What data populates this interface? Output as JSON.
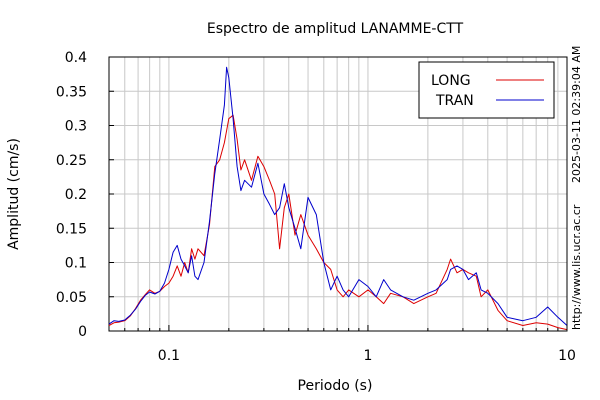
{
  "chart_data": {
    "type": "line",
    "title": "Espectro de amplitud LANAMME-CTT",
    "xlabel": "Periodo (s)",
    "ylabel": "Amplitud (cm/s)",
    "x_scale": "log",
    "xlim": [
      0.05,
      10
    ],
    "ylim": [
      0,
      0.4
    ],
    "grid": true,
    "legend_position": "top-right",
    "x_ticks": [
      {
        "value": 0.1,
        "label": "0.1"
      },
      {
        "value": 1,
        "label": "1"
      },
      {
        "value": 10,
        "label": "10"
      }
    ],
    "y_ticks": [
      {
        "value": 0,
        "label": "0"
      },
      {
        "value": 0.05,
        "label": "0.05"
      },
      {
        "value": 0.1,
        "label": "0.1"
      },
      {
        "value": 0.15,
        "label": "0.15"
      },
      {
        "value": 0.2,
        "label": "0.2"
      },
      {
        "value": 0.25,
        "label": "0.25"
      },
      {
        "value": 0.3,
        "label": "0.3"
      },
      {
        "value": 0.35,
        "label": "0.35"
      },
      {
        "value": 0.4,
        "label": "0.4"
      }
    ],
    "side_text_top": "2025-03-11 02:39:04 AM",
    "side_text_bottom": "http://www.lis.ucr.ac.cr",
    "series": [
      {
        "name": "LONG",
        "color": "#dd0000",
        "points": [
          [
            0.05,
            0.008
          ],
          [
            0.053,
            0.012
          ],
          [
            0.056,
            0.013
          ],
          [
            0.06,
            0.015
          ],
          [
            0.064,
            0.022
          ],
          [
            0.068,
            0.033
          ],
          [
            0.072,
            0.045
          ],
          [
            0.076,
            0.053
          ],
          [
            0.08,
            0.06
          ],
          [
            0.085,
            0.055
          ],
          [
            0.09,
            0.058
          ],
          [
            0.095,
            0.065
          ],
          [
            0.1,
            0.07
          ],
          [
            0.105,
            0.08
          ],
          [
            0.11,
            0.095
          ],
          [
            0.115,
            0.08
          ],
          [
            0.12,
            0.1
          ],
          [
            0.125,
            0.085
          ],
          [
            0.13,
            0.12
          ],
          [
            0.135,
            0.105
          ],
          [
            0.14,
            0.12
          ],
          [
            0.15,
            0.11
          ],
          [
            0.16,
            0.155
          ],
          [
            0.17,
            0.24
          ],
          [
            0.18,
            0.25
          ],
          [
            0.19,
            0.275
          ],
          [
            0.2,
            0.31
          ],
          [
            0.21,
            0.315
          ],
          [
            0.22,
            0.28
          ],
          [
            0.23,
            0.235
          ],
          [
            0.24,
            0.25
          ],
          [
            0.26,
            0.22
          ],
          [
            0.28,
            0.255
          ],
          [
            0.3,
            0.24
          ],
          [
            0.32,
            0.22
          ],
          [
            0.34,
            0.2
          ],
          [
            0.36,
            0.12
          ],
          [
            0.38,
            0.18
          ],
          [
            0.4,
            0.2
          ],
          [
            0.43,
            0.14
          ],
          [
            0.46,
            0.17
          ],
          [
            0.5,
            0.14
          ],
          [
            0.55,
            0.12
          ],
          [
            0.6,
            0.1
          ],
          [
            0.65,
            0.09
          ],
          [
            0.7,
            0.06
          ],
          [
            0.75,
            0.05
          ],
          [
            0.8,
            0.06
          ],
          [
            0.9,
            0.05
          ],
          [
            1.0,
            0.06
          ],
          [
            1.1,
            0.05
          ],
          [
            1.2,
            0.04
          ],
          [
            1.3,
            0.055
          ],
          [
            1.5,
            0.05
          ],
          [
            1.7,
            0.04
          ],
          [
            2.0,
            0.05
          ],
          [
            2.2,
            0.055
          ],
          [
            2.5,
            0.09
          ],
          [
            2.6,
            0.105
          ],
          [
            2.8,
            0.085
          ],
          [
            3.0,
            0.09
          ],
          [
            3.2,
            0.085
          ],
          [
            3.5,
            0.08
          ],
          [
            3.7,
            0.05
          ],
          [
            4.0,
            0.06
          ],
          [
            4.5,
            0.03
          ],
          [
            5.0,
            0.015
          ],
          [
            6.0,
            0.008
          ],
          [
            7.0,
            0.012
          ],
          [
            8.0,
            0.01
          ],
          [
            9.0,
            0.005
          ],
          [
            10.0,
            0.002
          ]
        ]
      },
      {
        "name": "TRAN",
        "color": "#0000cc",
        "points": [
          [
            0.05,
            0.01
          ],
          [
            0.053,
            0.015
          ],
          [
            0.056,
            0.014
          ],
          [
            0.06,
            0.016
          ],
          [
            0.064,
            0.023
          ],
          [
            0.068,
            0.032
          ],
          [
            0.072,
            0.043
          ],
          [
            0.076,
            0.052
          ],
          [
            0.08,
            0.057
          ],
          [
            0.085,
            0.054
          ],
          [
            0.09,
            0.058
          ],
          [
            0.095,
            0.07
          ],
          [
            0.1,
            0.09
          ],
          [
            0.105,
            0.115
          ],
          [
            0.11,
            0.125
          ],
          [
            0.115,
            0.105
          ],
          [
            0.12,
            0.095
          ],
          [
            0.125,
            0.085
          ],
          [
            0.13,
            0.11
          ],
          [
            0.135,
            0.08
          ],
          [
            0.14,
            0.075
          ],
          [
            0.15,
            0.1
          ],
          [
            0.16,
            0.16
          ],
          [
            0.17,
            0.23
          ],
          [
            0.18,
            0.28
          ],
          [
            0.19,
            0.33
          ],
          [
            0.195,
            0.385
          ],
          [
            0.2,
            0.37
          ],
          [
            0.21,
            0.31
          ],
          [
            0.22,
            0.24
          ],
          [
            0.23,
            0.205
          ],
          [
            0.24,
            0.22
          ],
          [
            0.26,
            0.21
          ],
          [
            0.28,
            0.245
          ],
          [
            0.3,
            0.2
          ],
          [
            0.32,
            0.185
          ],
          [
            0.34,
            0.17
          ],
          [
            0.36,
            0.18
          ],
          [
            0.38,
            0.215
          ],
          [
            0.4,
            0.18
          ],
          [
            0.43,
            0.15
          ],
          [
            0.46,
            0.12
          ],
          [
            0.5,
            0.195
          ],
          [
            0.55,
            0.17
          ],
          [
            0.6,
            0.1
          ],
          [
            0.65,
            0.06
          ],
          [
            0.7,
            0.08
          ],
          [
            0.75,
            0.06
          ],
          [
            0.8,
            0.05
          ],
          [
            0.9,
            0.075
          ],
          [
            1.0,
            0.065
          ],
          [
            1.1,
            0.05
          ],
          [
            1.2,
            0.075
          ],
          [
            1.3,
            0.06
          ],
          [
            1.5,
            0.05
          ],
          [
            1.7,
            0.045
          ],
          [
            2.0,
            0.055
          ],
          [
            2.2,
            0.06
          ],
          [
            2.5,
            0.075
          ],
          [
            2.6,
            0.09
          ],
          [
            2.8,
            0.095
          ],
          [
            3.0,
            0.09
          ],
          [
            3.2,
            0.075
          ],
          [
            3.5,
            0.085
          ],
          [
            3.7,
            0.06
          ],
          [
            4.0,
            0.055
          ],
          [
            4.5,
            0.04
          ],
          [
            5.0,
            0.02
          ],
          [
            6.0,
            0.015
          ],
          [
            7.0,
            0.02
          ],
          [
            8.0,
            0.035
          ],
          [
            9.0,
            0.02
          ],
          [
            10.0,
            0.008
          ]
        ]
      }
    ]
  }
}
